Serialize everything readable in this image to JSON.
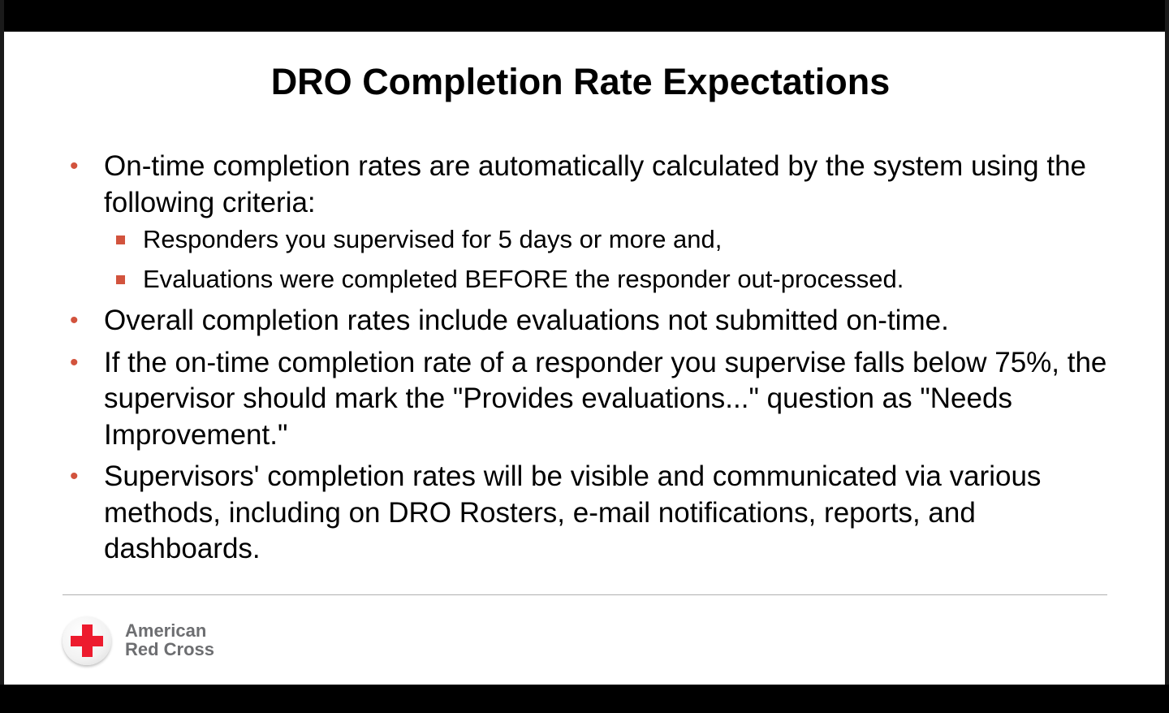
{
  "slide": {
    "title": "DRO Completion Rate Expectations",
    "bullets": [
      {
        "text": "On-time completion rates are automatically calculated by the system using the following criteria:",
        "subitems": [
          "Responders you supervised for 5 days or more and,",
          "Evaluations were completed BEFORE the responder out-processed."
        ]
      },
      {
        "text": "Overall completion rates include evaluations not submitted on-time."
      },
      {
        "text": "If the on-time completion rate of a responder you supervise falls below 75%, the supervisor should mark the \"Provides evaluations...\" question as \"Needs Improvement.\""
      },
      {
        "text": "Supervisors' completion rates will be visible and communicated via various methods, including on DRO Rosters, e-mail notifications, reports, and dashboards."
      }
    ],
    "bullet_glyph": "•",
    "accent_color": "#d2533d"
  },
  "footer": {
    "logo_icon": "red-cross-icon",
    "logo_line1": "American",
    "logo_line2": "Red Cross",
    "logo_color": "#ed1b2e"
  }
}
